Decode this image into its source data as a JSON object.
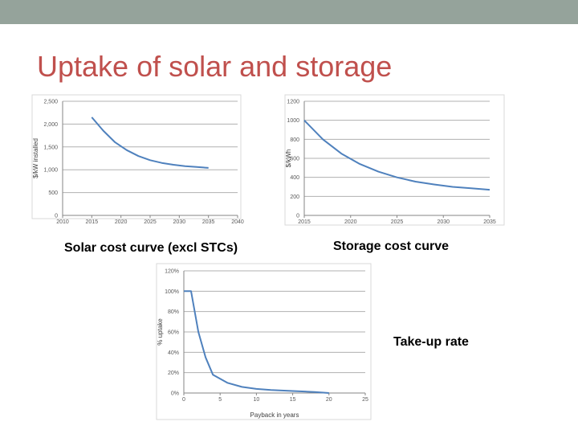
{
  "slide": {
    "title": "Uptake of solar and storage"
  },
  "captions": {
    "solar": "Solar cost curve (excl STCs)",
    "storage": "Storage cost curve",
    "takeup": "Take-up rate"
  },
  "colors": {
    "title": "#c0504d",
    "line": "#4f81bd",
    "grid": "#868686",
    "topbar": "#95a39b"
  },
  "chart_data": [
    {
      "type": "line",
      "title": "",
      "xlabel": "",
      "ylabel": "$/kW installed",
      "xticks": [
        "2010",
        "2015",
        "2020",
        "2025",
        "2030",
        "2035",
        "2040"
      ],
      "yticks": [
        "0",
        "500",
        "1,000",
        "1,500",
        "2,000",
        "2,500"
      ],
      "ylim": [
        0,
        2500
      ],
      "grid": true,
      "series": [
        {
          "x": [
            2015,
            2017,
            2019,
            2021,
            2023,
            2025,
            2027,
            2029,
            2031,
            2033,
            2035
          ],
          "y": [
            2150,
            1850,
            1600,
            1430,
            1300,
            1210,
            1150,
            1110,
            1080,
            1060,
            1040
          ]
        }
      ]
    },
    {
      "type": "line",
      "title": "",
      "xlabel": "",
      "ylabel": "$/kWh",
      "xticks": [
        "2015",
        "2020",
        "2025",
        "2030",
        "2035"
      ],
      "yticks": [
        "0",
        "200",
        "400",
        "600",
        "800",
        "1000",
        "1200"
      ],
      "ylim": [
        0,
        1200
      ],
      "grid": true,
      "series": [
        {
          "x": [
            2015,
            2017,
            2019,
            2021,
            2023,
            2025,
            2027,
            2029,
            2031,
            2033,
            2035
          ],
          "y": [
            1000,
            800,
            650,
            540,
            460,
            400,
            355,
            325,
            300,
            285,
            270
          ]
        }
      ]
    },
    {
      "type": "line",
      "title": "",
      "xlabel": "Payback in years",
      "ylabel": "% uptake",
      "xticks": [
        "0",
        "5",
        "10",
        "15",
        "20",
        "25"
      ],
      "yticks": [
        "0%",
        "20%",
        "40%",
        "60%",
        "80%",
        "100%",
        "120%"
      ],
      "xlim": [
        0,
        25
      ],
      "ylim": [
        0,
        120
      ],
      "grid": true,
      "series": [
        {
          "x": [
            0,
            1,
            2,
            3,
            4,
            6,
            8,
            10,
            12,
            15,
            18,
            20
          ],
          "y": [
            100,
            100,
            60,
            35,
            18,
            10,
            6,
            4,
            3,
            2,
            1,
            0
          ]
        }
      ]
    }
  ]
}
